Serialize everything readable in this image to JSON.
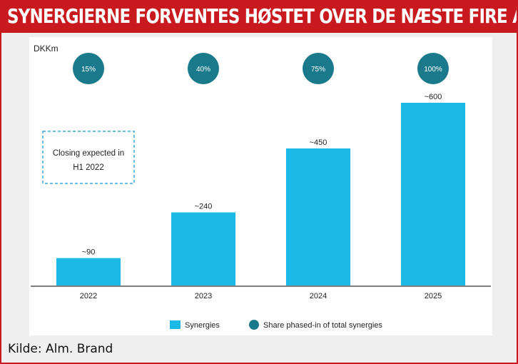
{
  "banner": {
    "title": "SYNERGIERNE FORVENTES HØSTET OVER DE NÆSTE FIRE ÅR"
  },
  "source": "Kilde: Alm. Brand",
  "colors": {
    "bar": "#1cb8e6",
    "circle": "#1a7a8c",
    "banner": "#c8191f",
    "annotation_border": "#39a9dc"
  },
  "chart_data": {
    "type": "bar",
    "unit_label": "DKKm",
    "categories": [
      "2022",
      "2023",
      "2024",
      "2025"
    ],
    "values": [
      90,
      240,
      450,
      600
    ],
    "value_labels": [
      "~90",
      "~240",
      "~450",
      "~600"
    ],
    "shares": [
      "15%",
      "40%",
      "75%",
      "100%"
    ],
    "ylim": [
      0,
      600
    ],
    "grid": false,
    "legend": {
      "position": "bottom",
      "items": [
        {
          "marker": "square",
          "label": "Synergies"
        },
        {
          "marker": "circle",
          "label": "Share phased-in of total synergies"
        }
      ]
    },
    "annotation": {
      "lines": [
        "Closing expected in",
        "H1 2022"
      ]
    }
  }
}
